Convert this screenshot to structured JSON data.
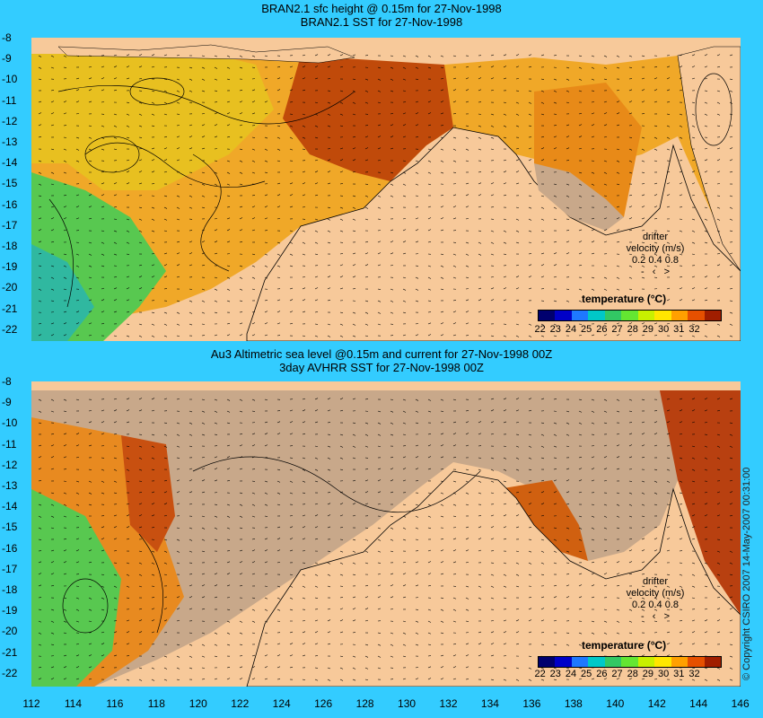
{
  "top": {
    "title_line1": "BRAN2.1 sfc height @ 0.15m for 27-Nov-1998",
    "title_line2": "BRAN2.1 SST for 27-Nov-1998"
  },
  "bottom": {
    "title_line1": "Au3 Altimetric sea level  @0.15m and current for 27-Nov-1998 00Z",
    "title_line2": "3day AVHRR SST for 27-Nov-1998 00Z"
  },
  "y_ticks": [
    "-8",
    "-9",
    "-10",
    "-11",
    "-12",
    "-13",
    "-14",
    "-15",
    "-16",
    "-17",
    "-18",
    "-19",
    "-20",
    "-21",
    "-22"
  ],
  "x_ticks": [
    "112",
    "114",
    "116",
    "118",
    "120",
    "122",
    "124",
    "126",
    "128",
    "130",
    "132",
    "134",
    "136",
    "138",
    "140",
    "142",
    "144",
    "146"
  ],
  "legend": {
    "title": "temperature (°C)",
    "labels": [
      "22",
      "23",
      "24",
      "25",
      "26",
      "27",
      "28",
      "29",
      "30",
      "31",
      "32"
    ],
    "colors": [
      "#00006E",
      "#0000C8",
      "#1E78FF",
      "#00C8C8",
      "#32C864",
      "#64E632",
      "#C8F000",
      "#FFE600",
      "#FFA000",
      "#E65000",
      "#A01E00"
    ]
  },
  "drifter": {
    "line1": "drifter",
    "line2": "velocity (m/s)",
    "line3": "0.2 0.4 0.8",
    "line4": ">"
  },
  "copyright": "© Copyright CSIRO 2007  14-May-2007 00:31:00",
  "colors": {
    "background": "#33CCFF",
    "land": "#F7C99A",
    "no_data": "#C8A88A",
    "ocean_warm": "#F0A020",
    "ocean_hot": "#B84000",
    "ocean_cool": "#40C060",
    "ocean_mid": "#E8C820"
  }
}
